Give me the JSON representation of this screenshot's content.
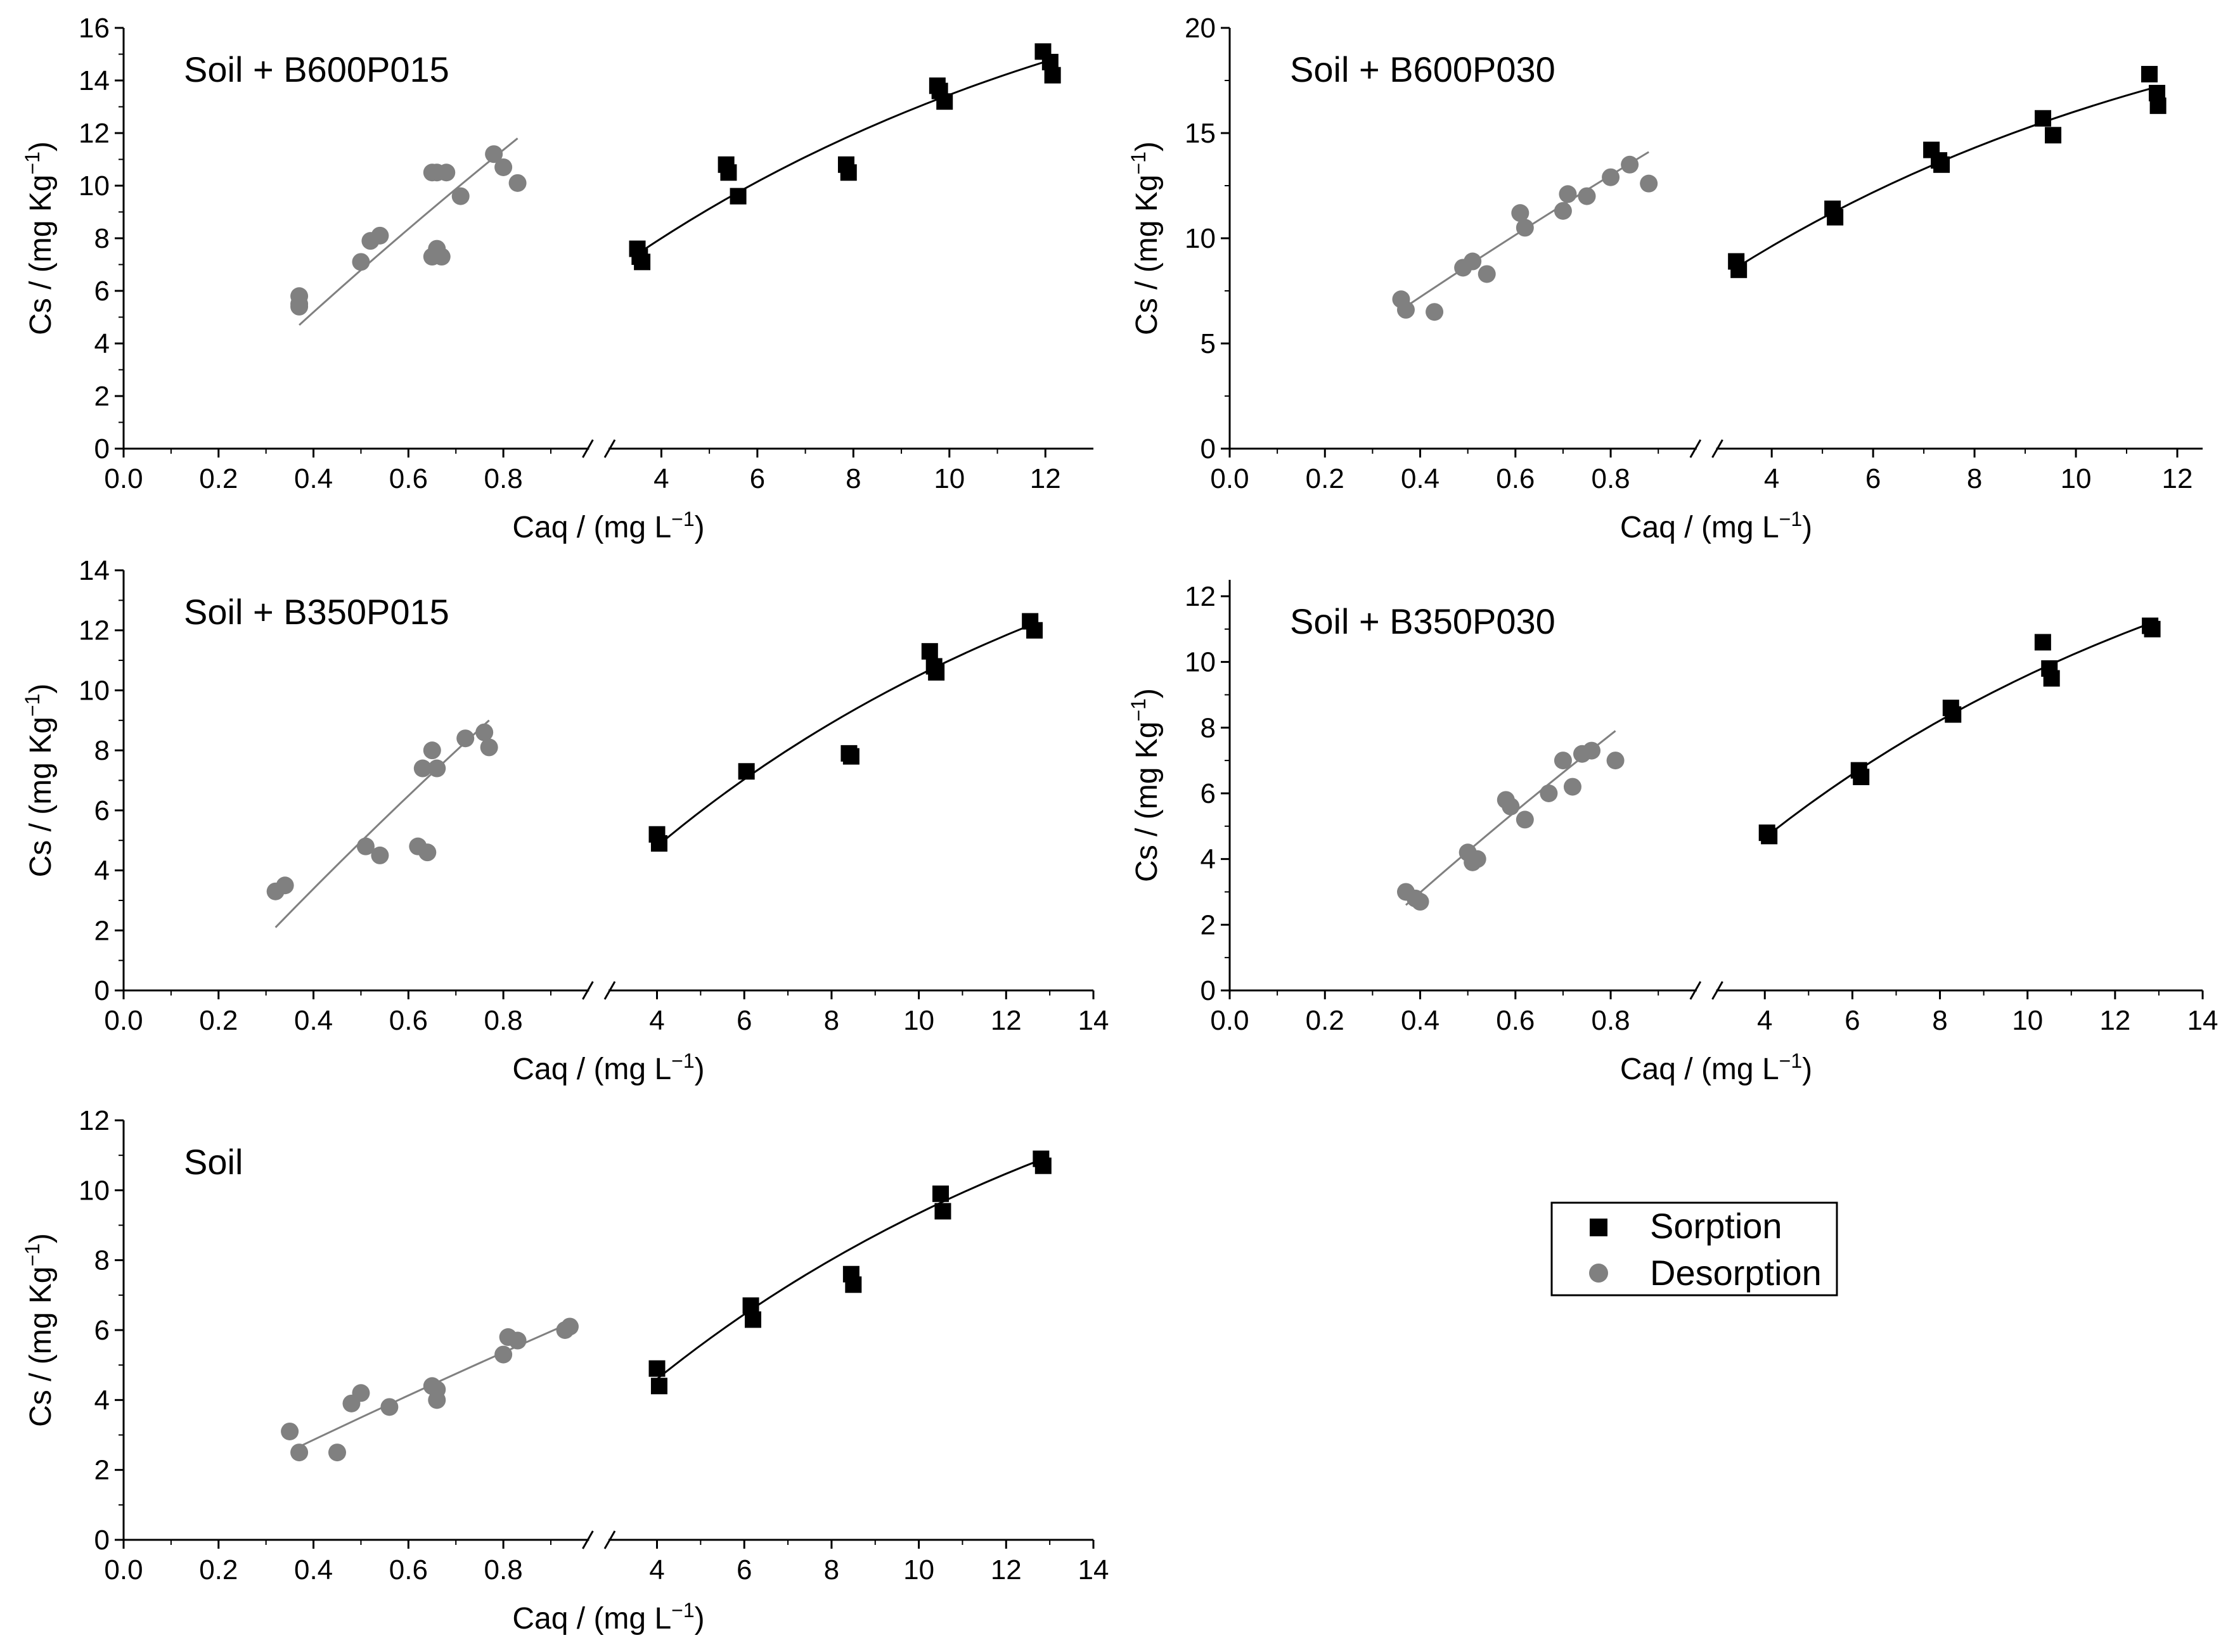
{
  "colors": {
    "sorption": "#000000",
    "desorption": "#808080",
    "axis": "#000000",
    "legend_border": "#000000"
  },
  "legend": {
    "items": [
      {
        "label": "Sorption",
        "marker": "square",
        "color": "#000000"
      },
      {
        "label": "Desorption",
        "marker": "circle",
        "color": "#808080"
      }
    ]
  },
  "chart_data": [
    {
      "type": "scatter",
      "title": "Soil + B600P015",
      "xlabel": "Caq / (mg L−1)",
      "ylabel": "Cs / (mg Kg−1)",
      "ylim": [
        0,
        16
      ],
      "yticks": [
        0,
        2,
        4,
        6,
        8,
        10,
        12,
        14,
        16
      ],
      "y_tick_labels": [
        "0",
        "2",
        "4",
        "6",
        "8",
        "10",
        "12",
        "14",
        "16"
      ],
      "x_left_lim": [
        0,
        0.95
      ],
      "x_left_ticks": [
        0,
        0.2,
        0.4,
        0.6,
        0.8
      ],
      "x_left_tick_labels": [
        "0.0",
        "0.2",
        "0.4",
        "0.6",
        "0.8"
      ],
      "x_right_lim": [
        3,
        13
      ],
      "x_right_ticks": [
        4,
        6,
        8,
        10,
        12
      ],
      "x_right_tick_labels": [
        "4",
        "6",
        "8",
        "10",
        "12"
      ],
      "series": [
        {
          "name": "Desorption",
          "x": [
            0.37,
            0.37,
            0.37,
            0.5,
            0.52,
            0.54,
            0.65,
            0.65,
            0.66,
            0.66,
            0.67,
            0.68,
            0.71,
            0.78,
            0.8,
            0.83
          ],
          "y": [
            5.4,
            5.8,
            5.5,
            7.1,
            7.9,
            8.1,
            7.3,
            10.5,
            7.6,
            10.5,
            7.3,
            10.5,
            9.6,
            11.2,
            10.7,
            10.1
          ]
        },
        {
          "name": "Sorption",
          "x": [
            3.5,
            3.55,
            3.6,
            5.35,
            5.4,
            5.6,
            7.85,
            7.9,
            9.75,
            9.8,
            9.9,
            11.95,
            12.1,
            12.15
          ],
          "y": [
            7.6,
            7.3,
            7.1,
            10.8,
            10.5,
            9.6,
            10.8,
            10.5,
            13.8,
            13.6,
            13.2,
            15.1,
            14.7,
            14.2
          ]
        }
      ],
      "fits": [
        {
          "name": "Desorption fit",
          "x": [
            0.37,
            0.83
          ],
          "y": [
            4.7,
            11.8
          ]
        },
        {
          "name": "Sorption fit",
          "x": [
            3.5,
            12.15
          ],
          "y": [
            7.4,
            14.8
          ]
        }
      ]
    },
    {
      "type": "scatter",
      "title": "Soil + B600P030",
      "xlabel": "Caq / (mg L−1)",
      "ylabel": "Cs / (mg Kg−1)",
      "ylim": [
        0,
        20
      ],
      "yticks": [
        0,
        5,
        10,
        15,
        20
      ],
      "y_tick_labels": [
        "0",
        "5",
        "10",
        "15",
        "20"
      ],
      "x_left_lim": [
        0,
        0.95
      ],
      "x_left_ticks": [
        0,
        0.2,
        0.4,
        0.6,
        0.8
      ],
      "x_left_tick_labels": [
        "0.0",
        "0.2",
        "0.4",
        "0.6",
        "0.8"
      ],
      "x_right_lim": [
        3,
        12.5
      ],
      "x_right_ticks": [
        4,
        6,
        8,
        10,
        12
      ],
      "x_right_tick_labels": [
        "4",
        "6",
        "8",
        "10",
        "12"
      ],
      "series": [
        {
          "name": "Desorption",
          "x": [
            0.36,
            0.37,
            0.43,
            0.49,
            0.51,
            0.54,
            0.61,
            0.62,
            0.7,
            0.71,
            0.75,
            0.8,
            0.84,
            0.88
          ],
          "y": [
            7.1,
            6.6,
            6.5,
            8.6,
            8.9,
            8.3,
            11.2,
            10.5,
            11.3,
            12.1,
            12,
            12.9,
            13.5,
            12.6
          ]
        },
        {
          "name": "Sorption",
          "x": [
            3.3,
            3.35,
            5.2,
            5.25,
            7.15,
            7.3,
            7.35,
            9.35,
            9.55,
            11.45,
            11.6,
            11.62
          ],
          "y": [
            8.9,
            8.5,
            11.4,
            11,
            14.2,
            13.7,
            13.5,
            15.7,
            14.9,
            17.8,
            16.9,
            16.3
          ]
        }
      ],
      "fits": [
        {
          "name": "Desorption fit",
          "x": [
            0.36,
            0.88
          ],
          "y": [
            6.6,
            14.1
          ]
        },
        {
          "name": "Sorption fit",
          "x": [
            3.3,
            11.6
          ],
          "y": [
            8.6,
            17.2
          ]
        }
      ]
    },
    {
      "type": "scatter",
      "title": "Soil + B350P015",
      "xlabel": "Caq / (mg L−1)",
      "ylabel": "Cs / (mg Kg−1)",
      "ylim": [
        0,
        14
      ],
      "yticks": [
        0,
        2,
        4,
        6,
        8,
        10,
        12,
        14
      ],
      "y_tick_labels": [
        "0",
        "2",
        "4",
        "6",
        "8",
        "10",
        "12",
        "14"
      ],
      "x_left_lim": [
        0,
        0.95
      ],
      "x_left_ticks": [
        0,
        0.2,
        0.4,
        0.6,
        0.8
      ],
      "x_left_tick_labels": [
        "0.0",
        "0.2",
        "0.4",
        "0.6",
        "0.8"
      ],
      "x_right_lim": [
        3,
        14
      ],
      "x_right_ticks": [
        4,
        6,
        8,
        10,
        12,
        14
      ],
      "x_right_tick_labels": [
        "4",
        "6",
        "8",
        "10",
        "12",
        "14"
      ],
      "series": [
        {
          "name": "Desorption",
          "x": [
            0.32,
            0.34,
            0.51,
            0.54,
            0.62,
            0.63,
            0.64,
            0.65,
            0.66,
            0.72,
            0.76,
            0.77
          ],
          "y": [
            3.3,
            3.5,
            4.8,
            4.5,
            4.8,
            7.4,
            4.6,
            8,
            7.4,
            8.4,
            8.6,
            8.1
          ]
        },
        {
          "name": "Sorption",
          "x": [
            4,
            4.05,
            6.05,
            8.4,
            8.45,
            10.25,
            10.35,
            10.4,
            12.55,
            12.65
          ],
          "y": [
            5.2,
            4.9,
            7.3,
            7.9,
            7.8,
            11.3,
            10.8,
            10.6,
            12.3,
            12
          ]
        }
      ],
      "fits": [
        {
          "name": "Desorption fit",
          "x": [
            0.32,
            0.77
          ],
          "y": [
            2.1,
            9
          ]
        },
        {
          "name": "Sorption fit",
          "x": [
            4,
            12.6
          ],
          "y": [
            4.8,
            12.2
          ]
        }
      ]
    },
    {
      "type": "scatter",
      "title": "Soil + B350P030",
      "xlabel": "Caq / (mg L−1)",
      "ylabel": "Cs / (mg Kg−1)",
      "ylim": [
        0,
        12.5
      ],
      "yticks": [
        0,
        2,
        4,
        6,
        8,
        10,
        12
      ],
      "y_tick_labels": [
        "0",
        "2",
        "4",
        "6",
        "8",
        "10",
        "12"
      ],
      "x_left_lim": [
        0,
        0.95
      ],
      "x_left_ticks": [
        0,
        0.2,
        0.4,
        0.6,
        0.8
      ],
      "x_left_tick_labels": [
        "0.0",
        "0.2",
        "0.4",
        "0.6",
        "0.8"
      ],
      "x_right_lim": [
        3,
        14
      ],
      "x_right_ticks": [
        4,
        6,
        8,
        10,
        12,
        14
      ],
      "x_right_tick_labels": [
        "4",
        "6",
        "8",
        "10",
        "12",
        "14"
      ],
      "series": [
        {
          "name": "Desorption",
          "x": [
            0.37,
            0.39,
            0.4,
            0.5,
            0.51,
            0.52,
            0.58,
            0.59,
            0.62,
            0.67,
            0.7,
            0.72,
            0.74,
            0.76,
            0.81
          ],
          "y": [
            3,
            2.8,
            2.7,
            4.2,
            3.9,
            4,
            5.8,
            5.6,
            5.2,
            6,
            7,
            6.2,
            7.2,
            7.3,
            7
          ]
        },
        {
          "name": "Sorption",
          "x": [
            4.05,
            4.1,
            6.15,
            6.2,
            8.25,
            8.3,
            10.35,
            10.5,
            10.55,
            12.8,
            12.85
          ],
          "y": [
            4.8,
            4.7,
            6.7,
            6.5,
            8.6,
            8.4,
            10.6,
            9.8,
            9.5,
            11.1,
            11
          ]
        }
      ],
      "fits": [
        {
          "name": "Desorption fit",
          "x": [
            0.37,
            0.81
          ],
          "y": [
            2.6,
            7.9
          ]
        },
        {
          "name": "Sorption fit",
          "x": [
            4.05,
            12.85
          ],
          "y": [
            4.7,
            11.2
          ]
        }
      ]
    },
    {
      "type": "scatter",
      "title": "Soil",
      "xlabel": "Caq / (mg L−1)",
      "ylabel": "Cs / (mg Kg−1)",
      "ylim": [
        0,
        12
      ],
      "yticks": [
        0,
        2,
        4,
        6,
        8,
        10,
        12
      ],
      "y_tick_labels": [
        "0",
        "2",
        "4",
        "6",
        "8",
        "10",
        "12"
      ],
      "x_left_lim": [
        0,
        0.95
      ],
      "x_left_ticks": [
        0,
        0.2,
        0.4,
        0.6,
        0.8
      ],
      "x_left_tick_labels": [
        "0.0",
        "0.2",
        "0.4",
        "0.6",
        "0.8"
      ],
      "x_right_lim": [
        3,
        14
      ],
      "x_right_ticks": [
        4,
        6,
        8,
        10,
        12,
        14
      ],
      "x_right_tick_labels": [
        "4",
        "6",
        "8",
        "10",
        "12",
        "14"
      ],
      "series": [
        {
          "name": "Desorption",
          "x": [
            0.35,
            0.37,
            0.45,
            0.48,
            0.5,
            0.56,
            0.65,
            0.66,
            0.66,
            0.8,
            0.81,
            0.83,
            0.93,
            0.94
          ],
          "y": [
            3.1,
            2.5,
            2.5,
            3.9,
            4.2,
            3.8,
            4.4,
            4.3,
            4,
            5.3,
            5.8,
            5.7,
            6,
            6.1
          ]
        },
        {
          "name": "Sorption",
          "x": [
            4,
            4.05,
            6.15,
            6.2,
            8.45,
            8.5,
            10.5,
            10.55,
            12.8,
            12.85
          ],
          "y": [
            4.9,
            4.4,
            6.7,
            6.3,
            7.6,
            7.3,
            9.9,
            9.4,
            10.9,
            10.7
          ]
        }
      ],
      "fits": [
        {
          "name": "Desorption fit",
          "x": [
            0.36,
            0.94
          ],
          "y": [
            2.6,
            6.2
          ]
        },
        {
          "name": "Sorption fit",
          "x": [
            4,
            12.85
          ],
          "y": [
            4.6,
            10.9
          ]
        }
      ]
    }
  ]
}
